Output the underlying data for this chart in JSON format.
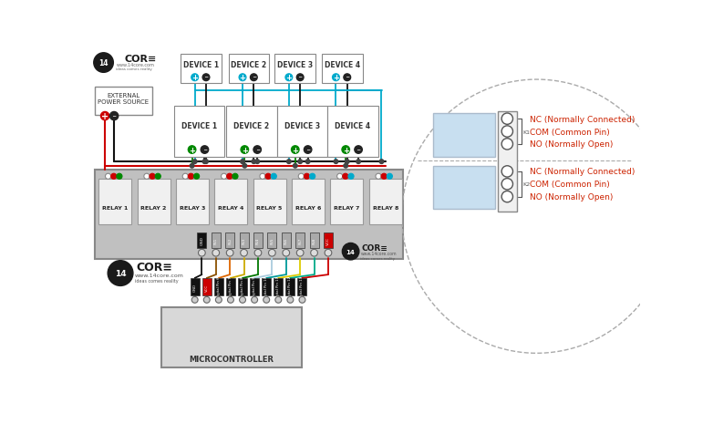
{
  "bg_color": "#ffffff",
  "relay_board_color": "#c0c0c0",
  "relay_box_color": "#f0f0f0",
  "relay_labels": [
    "RELAY 1",
    "RELAY 2",
    "RELAY 3",
    "RELAY 4",
    "RELAY 5",
    "RELAY 6",
    "RELAY 7",
    "RELAY 8"
  ],
  "device_top_labels": [
    "DEVICE 1",
    "DEVICE 2",
    "DEVICE 3",
    "DEVICE 4"
  ],
  "device_mid_labels": [
    "DEVICE 1",
    "DEVICE 2",
    "DEVICE 3",
    "DEVICE 4"
  ],
  "pin_labels_module": [
    "GND",
    "IN1",
    "IN2",
    "IN3",
    "IN4",
    "IN5",
    "IN6",
    "IN7",
    "IN8",
    "VCC"
  ],
  "pin_labels_mcu": [
    "GND",
    "VCC",
    "Digital Pin 6",
    "Digital Pin 7",
    "Digital Pin 8",
    "Digital Pin 9",
    "Digital Pin 10",
    "Digital Pin 11",
    "Digital Pin 12",
    "Digital Pin 13"
  ],
  "nc_labels": [
    "NC (Normally Connected)",
    "COM (Common Pin)",
    "NO (Normally Open)"
  ],
  "relay_detail_bg": "#c8dff0",
  "dashed_color": "#aaaaaa",
  "label_red": "#cc2200",
  "c_cyan": "#00aacc",
  "c_red": "#cc2200",
  "c_green": "#008800",
  "c_black": "#111111",
  "c_dark": "#333333",
  "c_wire_black": "#111111",
  "c_wire_red": "#cc0000",
  "c_wire_brown": "#8B5000",
  "c_wire_orange": "#dd6600",
  "c_wire_yellow": "#ccaa00",
  "c_wire_green": "#007700",
  "c_wire_blue_lt": "#aaccdd",
  "c_wire_teal": "#009999",
  "c_wire_yellow2": "#ddcc00",
  "c_wire_teal2": "#00aa88",
  "logo_dark": "#1a1a1a"
}
